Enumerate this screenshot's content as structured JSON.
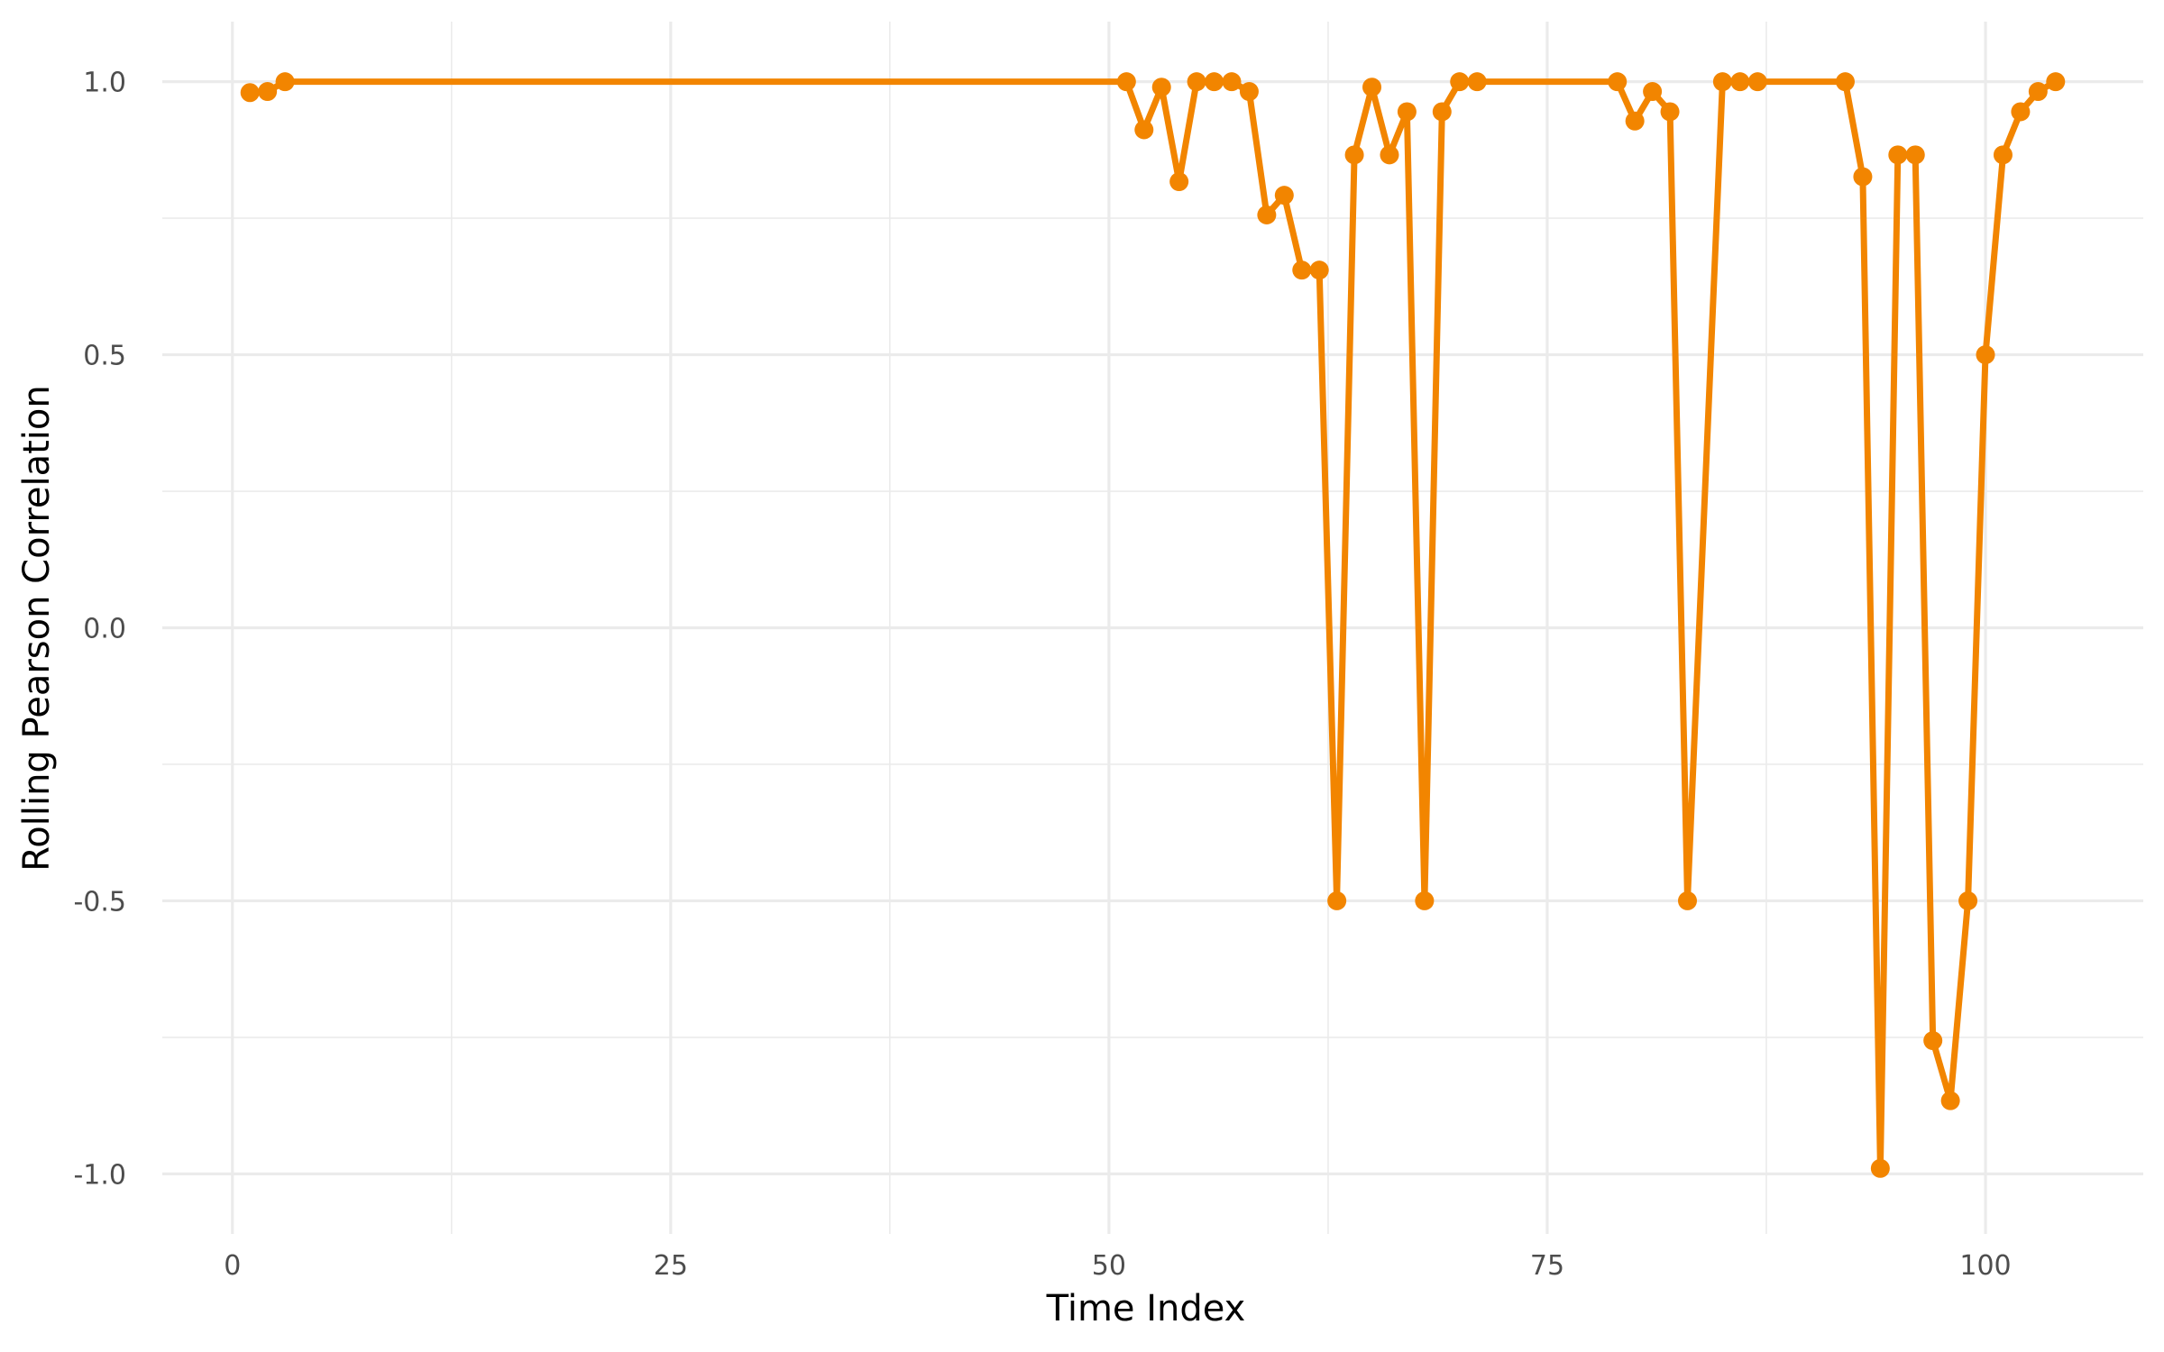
{
  "chart_data": {
    "type": "line",
    "title": "",
    "xlabel": "Time Index",
    "ylabel": "Rolling Pearson Correlation",
    "xlim": [
      -4,
      109
    ],
    "ylim": [
      -1.11,
      1.11
    ],
    "x_ticks": [
      0,
      25,
      50,
      75,
      100
    ],
    "x_tick_labels": [
      "0",
      "25",
      "50",
      "75",
      "100"
    ],
    "x_minor_ticks": [
      12.5,
      37.5,
      62.5,
      87.5
    ],
    "y_ticks": [
      1.0,
      0.5,
      0.0,
      -0.5,
      -1.0
    ],
    "y_tick_labels": [
      "1.0",
      "0.5",
      "0.0",
      "-0.5",
      "-1.0"
    ],
    "y_minor_ticks": [
      0.75,
      0.25,
      -0.25,
      -0.75
    ],
    "grid": true,
    "legend": false,
    "line_color": "#F28500",
    "grid_color": "#EBEBEB",
    "series": [
      {
        "x": [
          1,
          2,
          3,
          51,
          52,
          53,
          54,
          55,
          56,
          57,
          58,
          59,
          60,
          61,
          62,
          63,
          64,
          65,
          66,
          67,
          68,
          69,
          70,
          71,
          79,
          80,
          81,
          82,
          83,
          85,
          86,
          87,
          92,
          93,
          94,
          95,
          96,
          97,
          98,
          99,
          100,
          101,
          102,
          103,
          104
        ],
        "values": [
          0.98,
          0.982,
          1.0,
          1.0,
          0.912,
          0.99,
          0.817,
          1.0,
          1.0,
          1.0,
          0.982,
          0.756,
          0.792,
          0.655,
          0.655,
          -0.5,
          0.866,
          0.99,
          0.866,
          0.945,
          -0.5,
          0.945,
          1.0,
          1.0,
          1.0,
          0.928,
          0.982,
          0.945,
          -0.5,
          1.0,
          1.0,
          1.0,
          1.0,
          0.826,
          -0.99,
          0.866,
          0.866,
          -0.756,
          -0.866,
          -0.5,
          0.5,
          0.866,
          0.945,
          0.982,
          1.0
        ]
      }
    ]
  }
}
